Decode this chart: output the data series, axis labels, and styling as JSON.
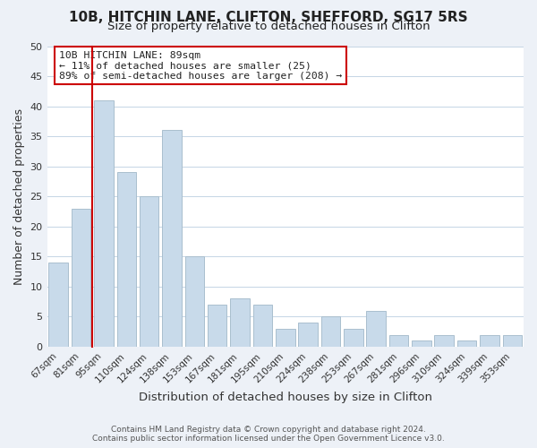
{
  "title": "10B, HITCHIN LANE, CLIFTON, SHEFFORD, SG17 5RS",
  "subtitle": "Size of property relative to detached houses in Clifton",
  "xlabel": "Distribution of detached houses by size in Clifton",
  "ylabel": "Number of detached properties",
  "bar_color": "#c8daea",
  "bar_edge_color": "#aabfce",
  "categories": [
    "67sqm",
    "81sqm",
    "95sqm",
    "110sqm",
    "124sqm",
    "138sqm",
    "153sqm",
    "167sqm",
    "181sqm",
    "195sqm",
    "210sqm",
    "224sqm",
    "238sqm",
    "253sqm",
    "267sqm",
    "281sqm",
    "296sqm",
    "310sqm",
    "324sqm",
    "339sqm",
    "353sqm"
  ],
  "values": [
    14,
    23,
    41,
    29,
    25,
    36,
    15,
    7,
    8,
    7,
    3,
    4,
    5,
    3,
    6,
    2,
    1,
    2,
    1,
    2,
    2
  ],
  "ylim": [
    0,
    50
  ],
  "yticks": [
    0,
    5,
    10,
    15,
    20,
    25,
    30,
    35,
    40,
    45,
    50
  ],
  "annotation_title": "10B HITCHIN LANE: 89sqm",
  "annotation_line1": "← 11% of detached houses are smaller (25)",
  "annotation_line2": "89% of semi-detached houses are larger (208) →",
  "vline_color": "#cc0000",
  "footer1": "Contains HM Land Registry data © Crown copyright and database right 2024.",
  "footer2": "Contains public sector information licensed under the Open Government Licence v3.0.",
  "background_color": "#edf1f7",
  "plot_background": "#ffffff",
  "grid_color": "#c5d5e5",
  "title_fontsize": 11,
  "subtitle_fontsize": 10
}
